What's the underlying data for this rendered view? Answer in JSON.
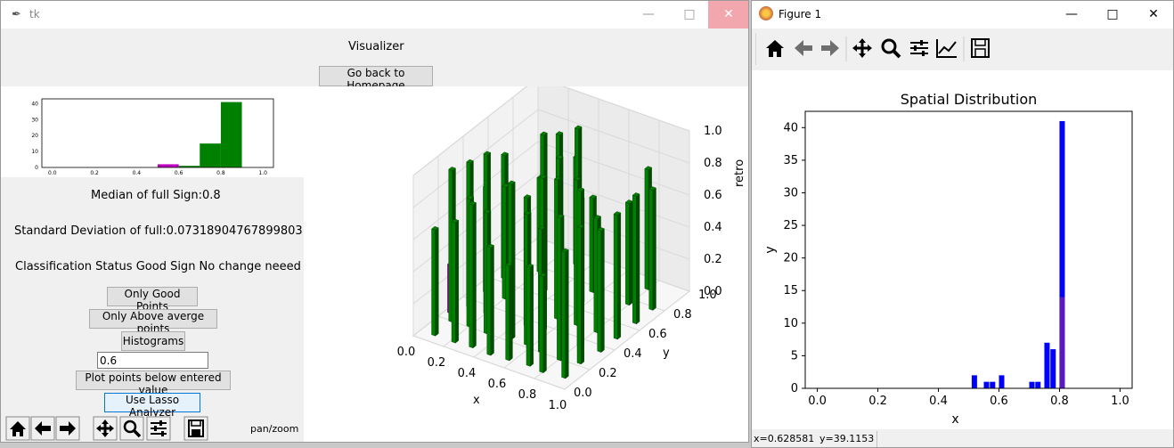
{
  "tk_window": {
    "title": "tk",
    "heading": "Visualizer",
    "back_button": "Go back to Homepage",
    "median_text": "Median of full Sign:0.8",
    "std_text": "Standard Deviation of full:0.07318904767899803",
    "classification_text": "Classification Status Good Sign No change neeed",
    "buttons": {
      "good_points": "Only Good Points",
      "above_average": "Only Above averge points",
      "histograms": "Histograms",
      "plot_below": "Plot points below entered value",
      "lasso": "Use Lasso Analyzer"
    },
    "threshold_value": "0.6",
    "toolbar_mode": "pan/zoom",
    "mini_hist": {
      "type": "bar",
      "x_ticks": [
        "0.0",
        "0.2",
        "0.4",
        "0.6",
        "0.8",
        "1.0"
      ],
      "y_ticks": [
        "0",
        "10",
        "20",
        "30",
        "40"
      ],
      "bins": [
        {
          "x0": 0.5,
          "x1": 0.6,
          "value": 2,
          "color": "#bf00bf"
        },
        {
          "x0": 0.6,
          "x1": 0.7,
          "value": 1,
          "color": "#008000"
        },
        {
          "x0": 0.7,
          "x1": 0.8,
          "value": 15,
          "color": "#008000"
        },
        {
          "x0": 0.8,
          "x1": 0.9,
          "value": 41,
          "color": "#008000"
        }
      ],
      "xlim": [
        -0.05,
        1.05
      ],
      "ylim": [
        0,
        43
      ]
    },
    "plot3d": {
      "x_ticks": [
        "0.0",
        "0.2",
        "0.4",
        "0.6",
        "0.8",
        "1.0"
      ],
      "y_ticks": [
        "0.0",
        "0.2",
        "0.4",
        "0.6",
        "0.8",
        "1.0"
      ],
      "z_ticks": [
        "0.0",
        "0.2",
        "0.4",
        "0.6",
        "0.8",
        "1.0"
      ],
      "xlabel": "x",
      "ylabel": "y",
      "zlabel": "retro",
      "bar_color": "#008000",
      "highlight_color": "#bf00bf"
    }
  },
  "figure_window": {
    "title": "Figure 1",
    "status_x": "x=0.628581",
    "status_y": "y=39.1153",
    "chart_data": {
      "type": "bar",
      "title": "Spatial Distribution",
      "xlabel": "x",
      "ylabel": "y",
      "x_ticks": [
        "0.0",
        "0.2",
        "0.4",
        "0.6",
        "0.8",
        "1.0"
      ],
      "y_ticks": [
        "0",
        "5",
        "10",
        "15",
        "20",
        "25",
        "30",
        "35",
        "40"
      ],
      "xlim": [
        -0.04,
        1.04
      ],
      "ylim": [
        0,
        42.5
      ],
      "bars": [
        {
          "x": 0.51,
          "value": 2
        },
        {
          "x": 0.55,
          "value": 1
        },
        {
          "x": 0.57,
          "value": 1
        },
        {
          "x": 0.6,
          "value": 2
        },
        {
          "x": 0.7,
          "value": 1
        },
        {
          "x": 0.72,
          "value": 1
        },
        {
          "x": 0.75,
          "value": 7
        },
        {
          "x": 0.77,
          "value": 6
        },
        {
          "x": 0.8,
          "value": 41,
          "overlay": 14
        }
      ],
      "bar_color": "#0000ff",
      "overlay_color": "#5a1ac0"
    }
  }
}
